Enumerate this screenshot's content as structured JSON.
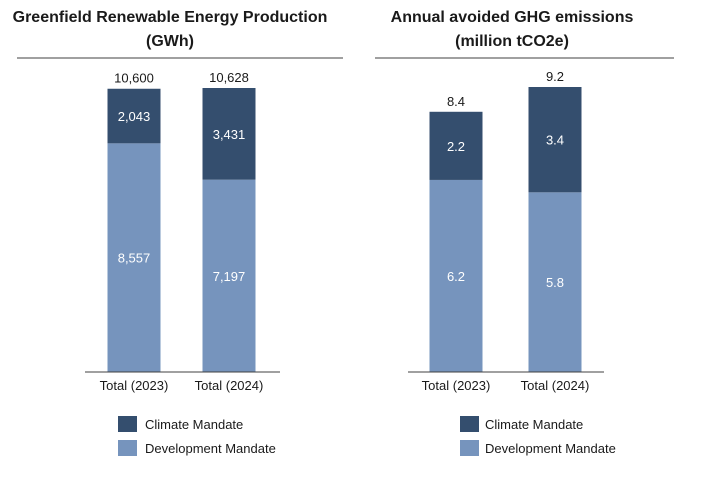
{
  "colors": {
    "climate": "#344e6e",
    "development": "#7694bd",
    "axis": "#404040",
    "text": "#1a1a1a"
  },
  "legend": {
    "climate_label": "Climate Mandate",
    "development_label": "Development Mandate"
  },
  "chart_data": [
    {
      "type": "bar",
      "stacked": true,
      "title": "Greenfield Renewable Energy Production",
      "subtitle": "(GWh)",
      "categories": [
        "Total (2023)",
        "Total (2024)"
      ],
      "series": [
        {
          "name": "Development Mandate",
          "values": [
            8557,
            7197
          ],
          "labels": [
            "8,557",
            "7,197"
          ]
        },
        {
          "name": "Climate Mandate",
          "values": [
            2043,
            3431
          ],
          "labels": [
            "2,043",
            "3,431"
          ]
        }
      ],
      "totals": [
        10600,
        10628
      ],
      "total_labels": [
        "10,600",
        "10,628"
      ],
      "legend_position": "bottom",
      "grid": false
    },
    {
      "type": "bar",
      "stacked": true,
      "title": "Annual avoided GHG emissions",
      "subtitle": "(million tCO2e)",
      "categories": [
        "Total (2023)",
        "Total (2024)"
      ],
      "series": [
        {
          "name": "Development Mandate",
          "values": [
            6.2,
            5.8
          ],
          "labels": [
            "6.2",
            "5.8"
          ]
        },
        {
          "name": "Climate Mandate",
          "values": [
            2.2,
            3.4
          ],
          "labels": [
            "2.2",
            "3.4"
          ]
        }
      ],
      "totals": [
        8.4,
        9.2
      ],
      "total_labels": [
        "8.4",
        "9.2"
      ],
      "legend_position": "bottom",
      "grid": false
    }
  ]
}
